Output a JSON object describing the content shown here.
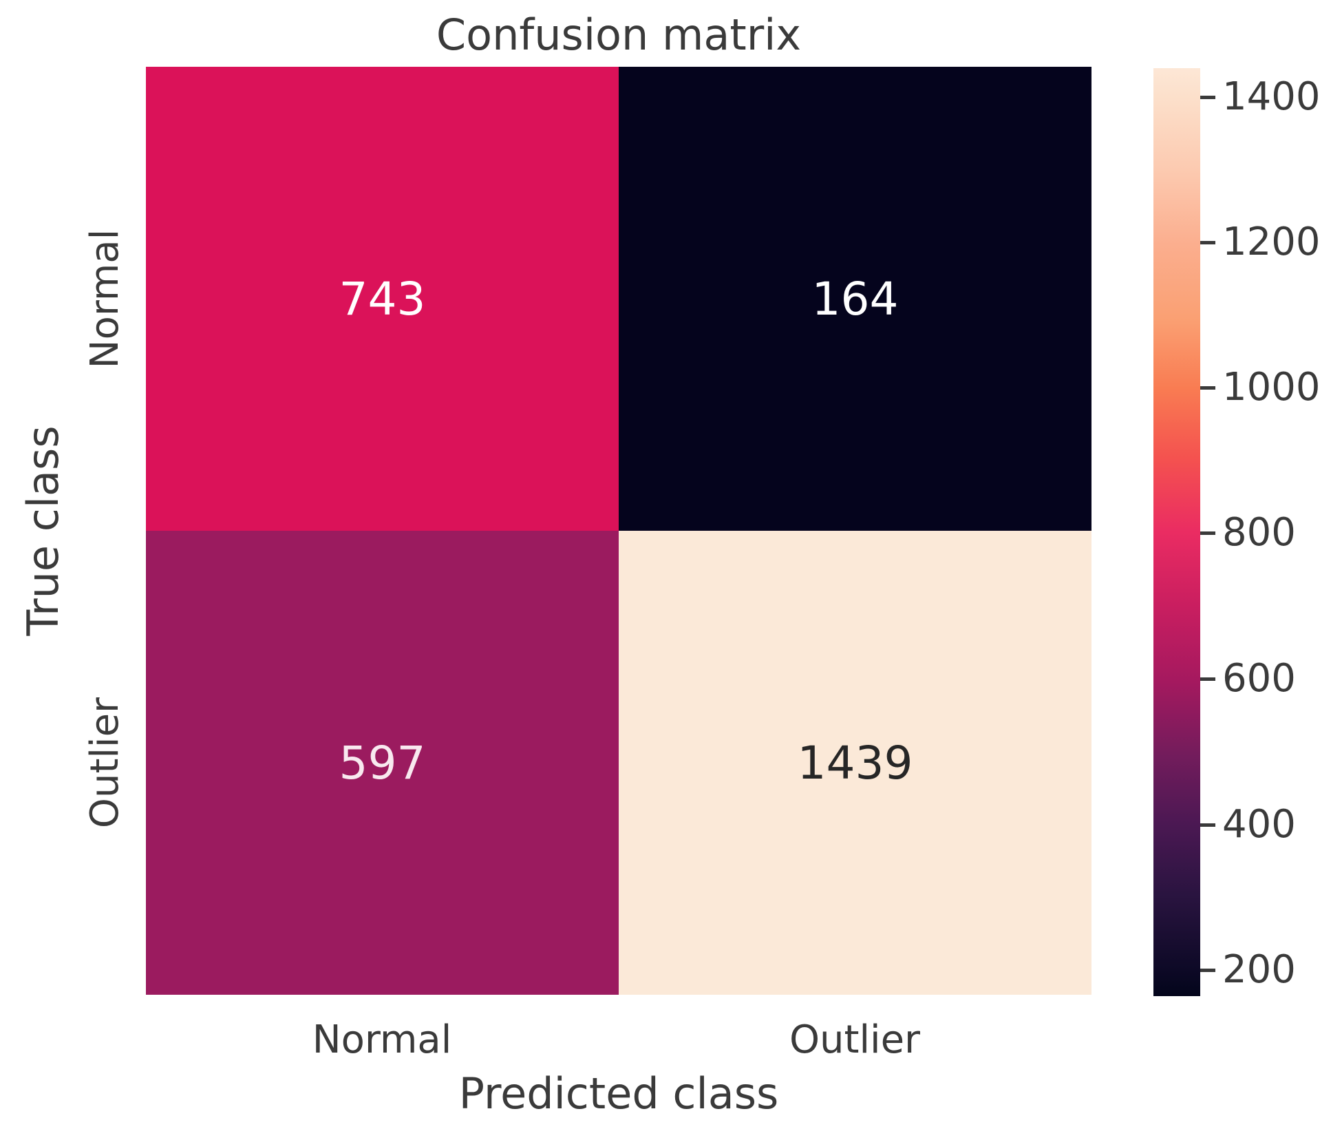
{
  "chart_data": {
    "type": "heatmap",
    "title": "Confusion matrix",
    "xlabel": "Predicted class",
    "ylabel": "True class",
    "x_categories": [
      "Normal",
      "Outlier"
    ],
    "y_categories": [
      "Normal",
      "Outlier"
    ],
    "matrix": [
      [
        743,
        164
      ],
      [
        597,
        1439
      ]
    ],
    "cells": [
      {
        "row": "Normal",
        "col": "Normal",
        "value": "743",
        "color": "#db1259",
        "text_color": "#ffffff"
      },
      {
        "row": "Normal",
        "col": "Outlier",
        "value": "164",
        "color": "#05041d",
        "text_color": "#ffffff"
      },
      {
        "row": "Outlier",
        "col": "Normal",
        "value": "597",
        "color": "#9b1b5f",
        "text_color": "#f8e9ef"
      },
      {
        "row": "Outlier",
        "col": "Outlier",
        "value": "1439",
        "color": "#fbe9d8",
        "text_color": "#262626"
      }
    ],
    "colorbar": {
      "position": "right",
      "colormap": "rocket",
      "vmin": 164,
      "vmax": 1439,
      "ticks": [
        "1400",
        "1200",
        "1000",
        "800",
        "600",
        "400",
        "200"
      ]
    },
    "grid": false,
    "background_color": "#ffffff",
    "text_color": "#3a3a3a"
  }
}
